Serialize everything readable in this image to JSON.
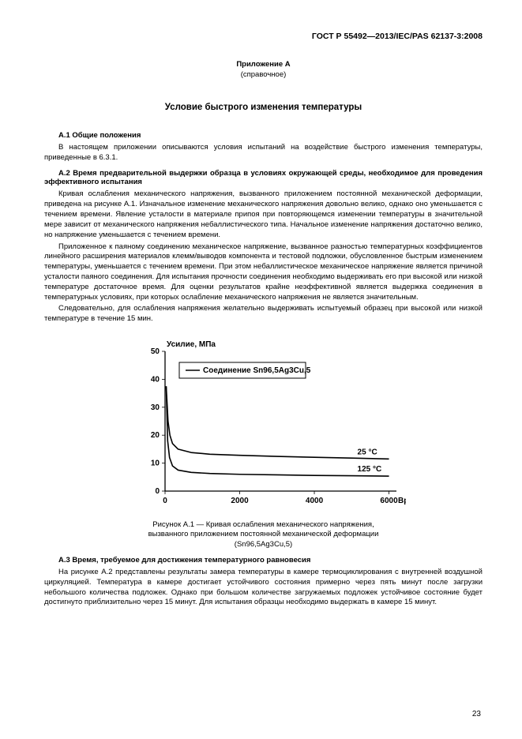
{
  "doc_id": "ГОСТ Р 55492—2013/IEC/PAS 62137-3:2008",
  "annex": {
    "label": "Приложение А",
    "subtitle": "(справочное)"
  },
  "title": "Условие быстрого изменения температуры",
  "sec_a1": {
    "h": "А.1  Общие положения",
    "p1": "В настоящем приложении описываются условия испытаний на воздействие быстрого изменения температуры, приведенные в 6.3.1."
  },
  "sec_a2": {
    "h": "А.2  Время предварительной выдержки образца в условиях окружающей среды, необходимое для проведения эффективного испытания",
    "p1": "Кривая ослабления механического напряжения, вызванного приложением постоянной механической деформации, приведена на рисунке А.1. Изначальное изменение механического напряжения довольно велико, однако оно уменьшается с течением времени. Явление усталости в материале припоя при повторяющемся изменении температуры в значительной мере зависит от механического напряжения небаллистического типа. Начальное изменение напряжения достаточно велико, но напряжение уменьшается с течением времени.",
    "p2": "Приложенное к паяному соединению механическое напряжение, вызванное разностью температурных коэффициентов линейного расширения материалов клемм/выводов компонента и тестовой подложки, обусловленное быстрым изменением температуры, уменьшается с течением времени. При этом небаллистическое механическое напряжение является причиной усталости паяного соединения. Для испытания прочности соединения необходимо выдерживать его при высокой или низкой температуре достаточное время. Для оценки результатов крайне неэффективной является выдержка соединения в температурных условиях, при которых ослабление механического напряжения не является значительным.",
    "p3": "Следовательно, для ослабления напряжения желательно выдерживать испытуемый образец при высокой или низкой температуре в течение 15 мин."
  },
  "chart": {
    "type": "line",
    "axis_title": "Усилие, МПа",
    "x_title": "Время, с",
    "x_ticks": [
      0,
      2000,
      4000,
      6000
    ],
    "y_ticks": [
      0,
      10,
      20,
      30,
      40,
      50
    ],
    "xlim": [
      0,
      6200
    ],
    "ylim": [
      0,
      50
    ],
    "legend_box_label": "Соединение Sn96,5Ag3Cu,5",
    "series": [
      {
        "label": "25 °C",
        "points": [
          [
            30,
            37.5
          ],
          [
            80,
            25
          ],
          [
            130,
            20
          ],
          [
            200,
            17
          ],
          [
            350,
            15
          ],
          [
            700,
            13.8
          ],
          [
            1200,
            13.2
          ],
          [
            2000,
            12.8
          ],
          [
            3000,
            12.4
          ],
          [
            4000,
            12.1
          ],
          [
            5000,
            11.8
          ],
          [
            6000,
            11.5
          ]
        ]
      },
      {
        "label": "125 °C",
        "points": [
          [
            30,
            37.5
          ],
          [
            70,
            18
          ],
          [
            120,
            12
          ],
          [
            200,
            9
          ],
          [
            350,
            7.5
          ],
          [
            700,
            6.7
          ],
          [
            1200,
            6.3
          ],
          [
            2000,
            6.0
          ],
          [
            3000,
            5.8
          ],
          [
            4000,
            5.6
          ],
          [
            5000,
            5.5
          ],
          [
            6000,
            5.35
          ]
        ]
      }
    ],
    "axis_color": "#000000",
    "background_color": "#ffffff",
    "caption_l1": "Рисунок А.1 — Кривая ослабления механического напряжения,",
    "caption_l2": "вызванного приложением постоянной механической деформации",
    "caption_l3": "(Sn96,5Ag3Cu,5)"
  },
  "sec_a3": {
    "h": "А.3  Время, требуемое для достижения температурного равновесия",
    "p1": "На рисунке А.2 представлены результаты замера температуры в камере термоциклирования с внутренней воздушной циркуляцией. Температура в камере достигает устойчивого состояния примерно через пять минут после загрузки небольшого количества подложек. Однако при большом количестве загружаемых подложек устойчивое состояние будет достигнуто приблизительно через 15 минут. Для испытания образцы необходимо выдержать в камере 15 минут."
  },
  "page_number": "23"
}
